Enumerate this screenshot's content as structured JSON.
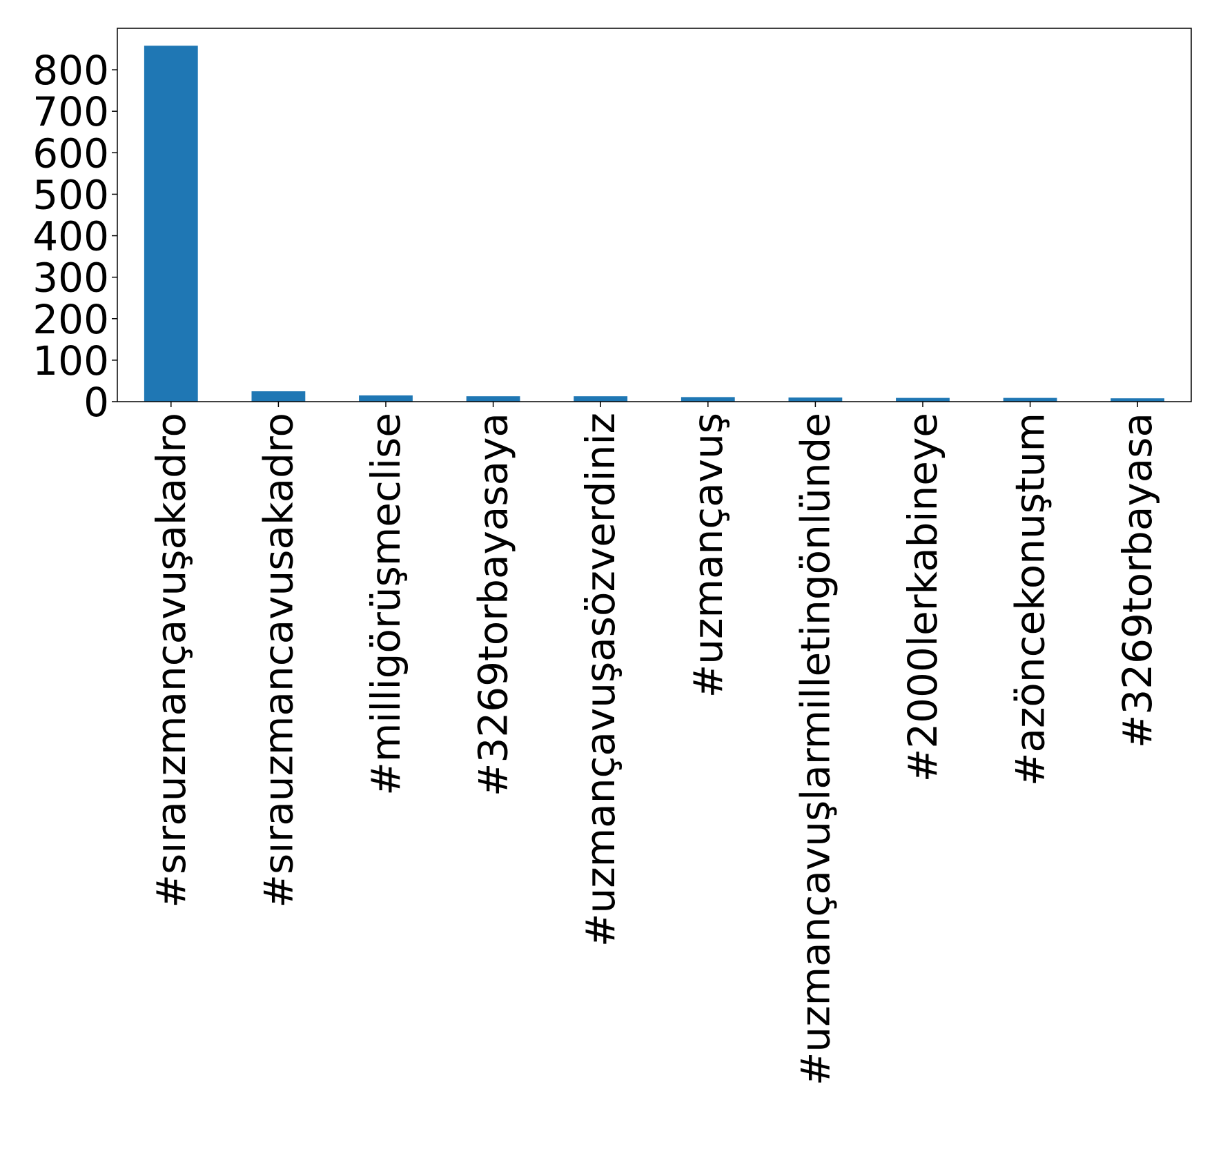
{
  "chart_data": {
    "type": "bar",
    "categories": [
      "#sırauzmançavuşakadro",
      "#sırauzmancavusakadro",
      "#milligörüşmeclise",
      "#3269torbayasaya",
      "#uzmançavuşasözverdiniz",
      "#uzmançavuş",
      "#uzmançavuşlarmilletingönlünde",
      "#2000lerkabineye",
      "#azöncekonuştum",
      "#3269torbayasa"
    ],
    "values": [
      858,
      25,
      15,
      13,
      13,
      11,
      10,
      9,
      9,
      8
    ],
    "ylim": [
      0,
      900
    ],
    "yticks": [
      0,
      100,
      200,
      300,
      400,
      500,
      600,
      700,
      800
    ],
    "title": "",
    "xlabel": "",
    "ylabel": "",
    "grid": false,
    "bar_color": "#1f77b4"
  }
}
